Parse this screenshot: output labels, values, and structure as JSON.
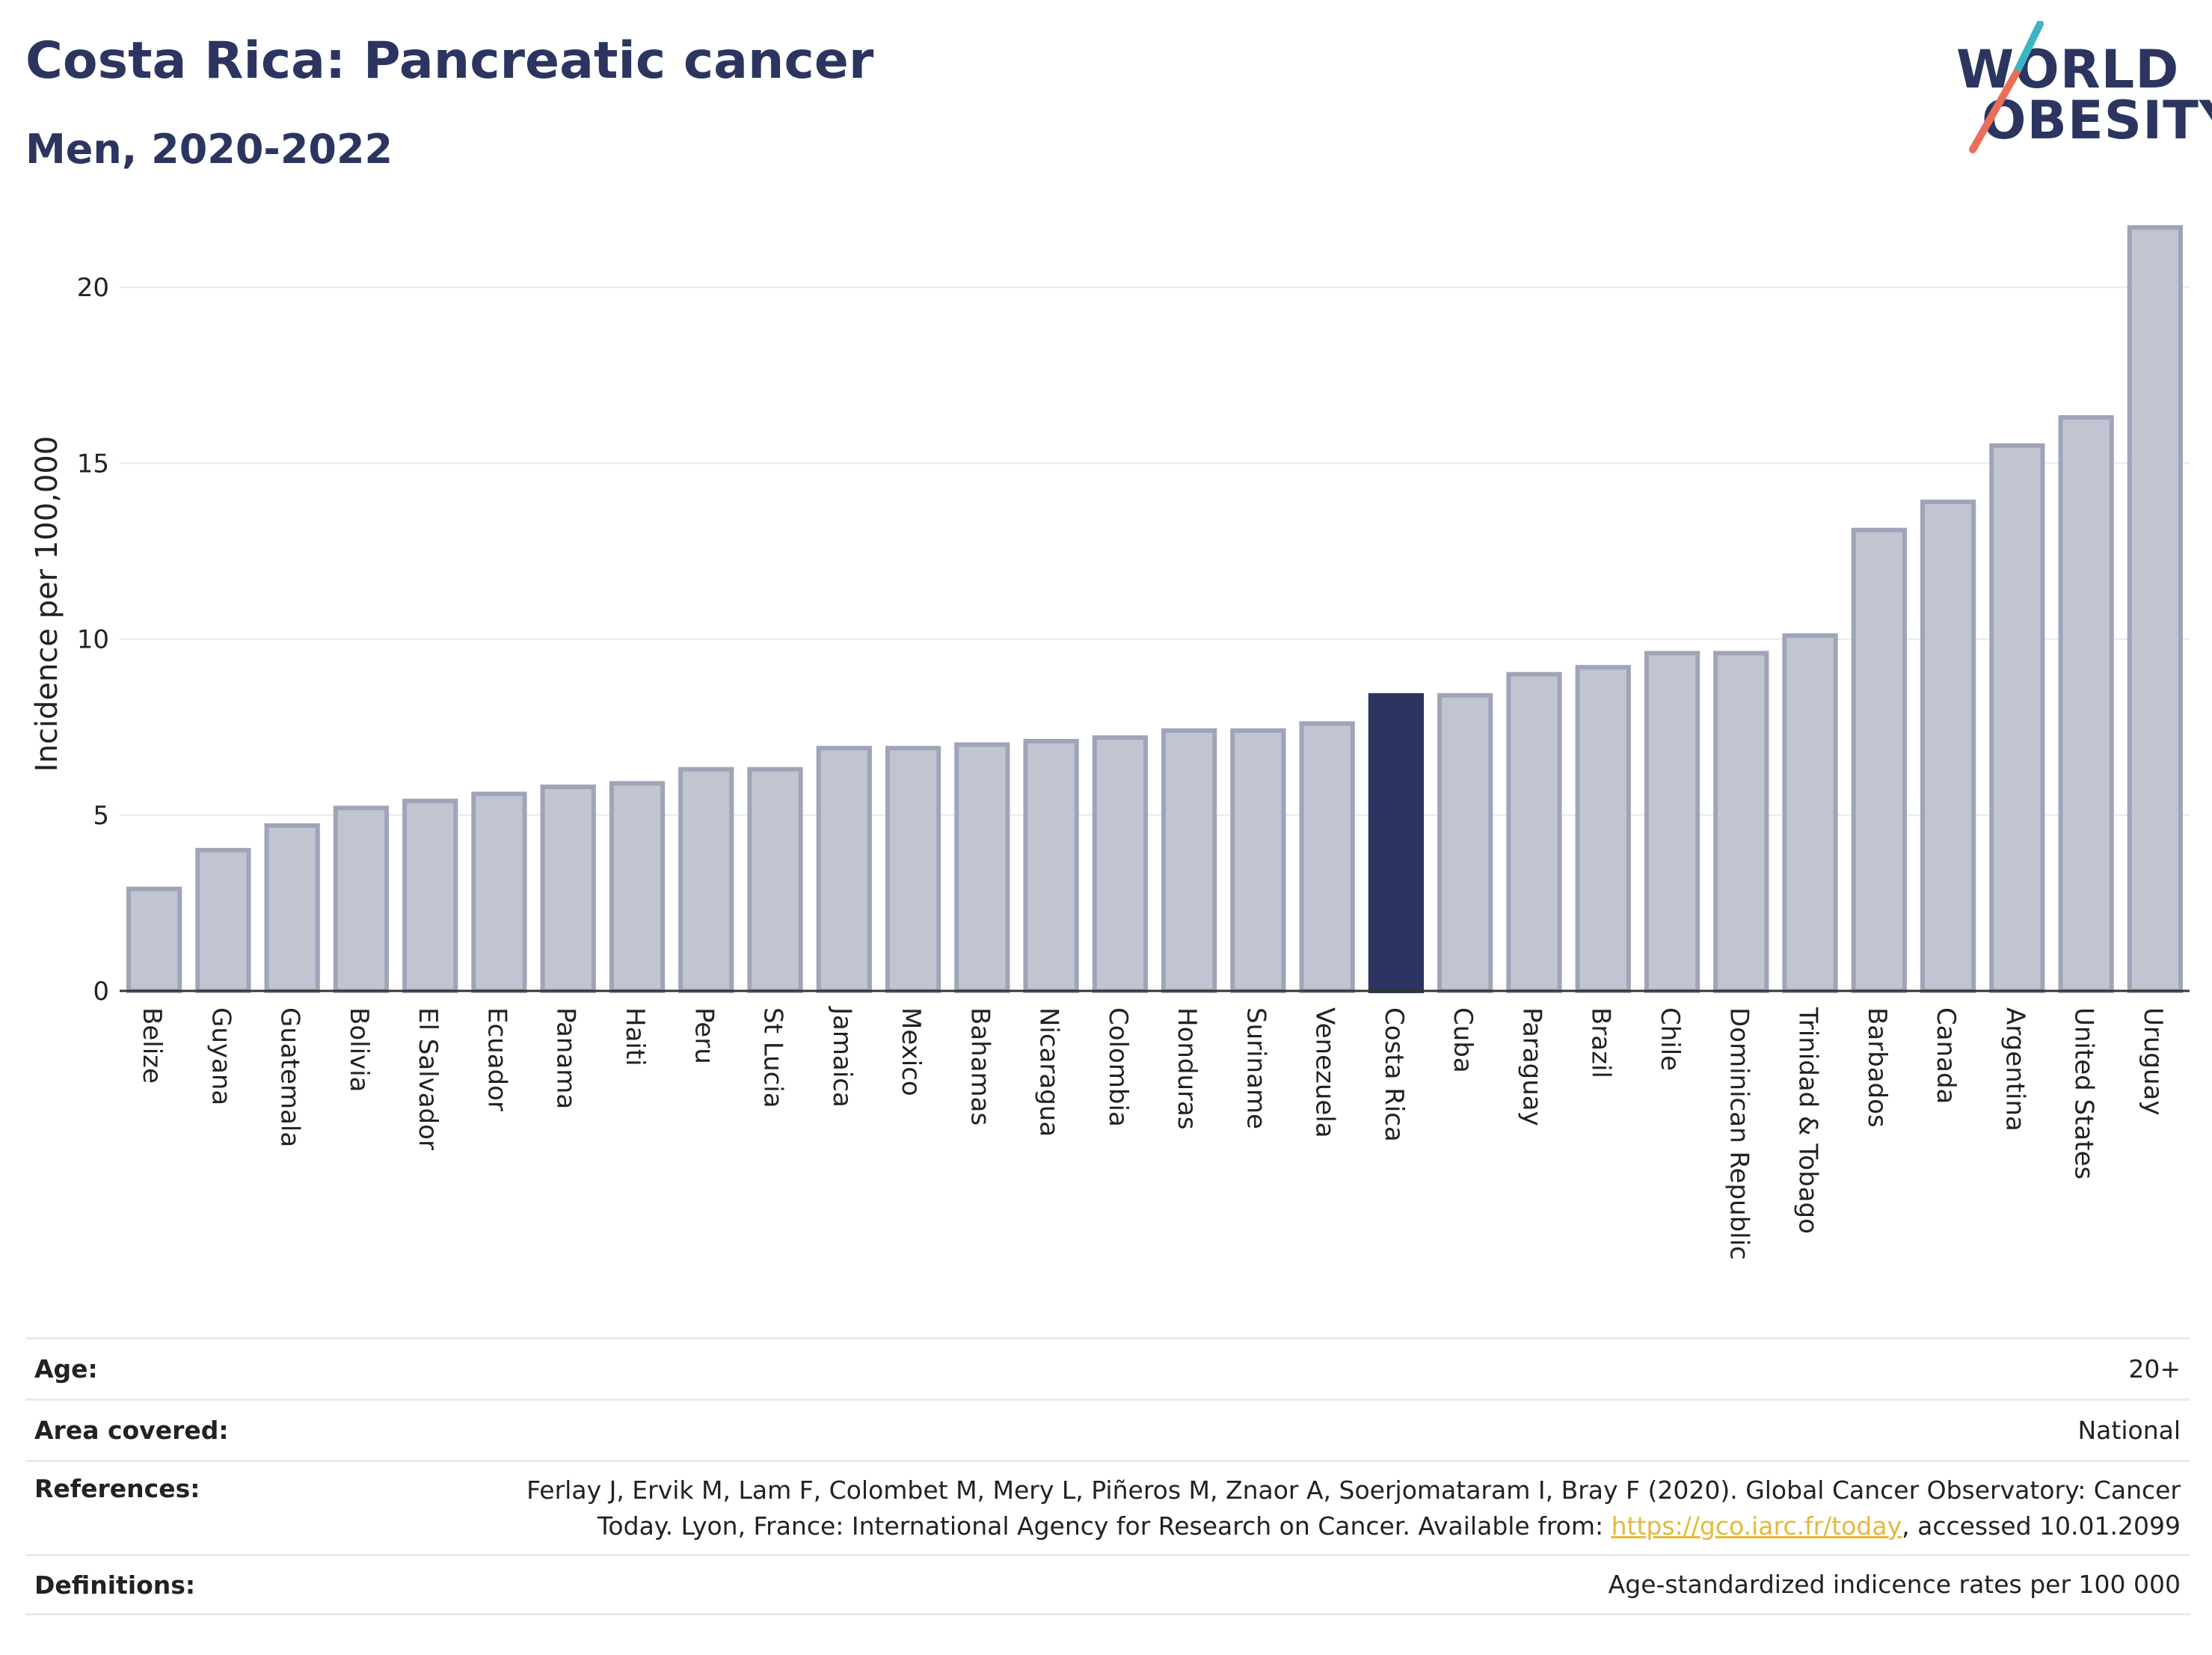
{
  "header": {
    "title": "Costa Rica: Pancreatic cancer",
    "subtitle": "Men, 2020-2022"
  },
  "logo": {
    "line1": "WORLD",
    "line2": "OBESITY",
    "colors": {
      "text": "#2b3560",
      "slash_top": "#3bb5c4",
      "slash_bottom": "#e8705a"
    }
  },
  "chart_data": {
    "type": "bar",
    "ylabel": "Incidence per 100,000",
    "xlabel": "",
    "ylim": [
      0,
      22
    ],
    "yticks": [
      0,
      5,
      10,
      15,
      20
    ],
    "grid": true,
    "highlight": "Costa Rica",
    "colors": {
      "bar": "#c1c4d1",
      "bar_stroke": "#9fa4b8",
      "highlight": "#2b3560"
    },
    "categories": [
      "Belize",
      "Guyana",
      "Guatemala",
      "Bolivia",
      "El Salvador",
      "Ecuador",
      "Panama",
      "Haiti",
      "Peru",
      "St Lucia",
      "Jamaica",
      "Mexico",
      "Bahamas",
      "Nicaragua",
      "Colombia",
      "Honduras",
      "Suriname",
      "Venezuela",
      "Costa Rica",
      "Cuba",
      "Paraguay",
      "Brazil",
      "Chile",
      "Dominican Republic",
      "Trinidad & Tobago",
      "Barbados",
      "Canada",
      "Argentina",
      "United States",
      "Uruguay"
    ],
    "values": [
      2.9,
      4.0,
      4.7,
      5.2,
      5.4,
      5.6,
      5.8,
      5.9,
      6.3,
      6.3,
      6.9,
      6.9,
      7.0,
      7.1,
      7.2,
      7.4,
      7.4,
      7.6,
      8.4,
      8.4,
      9.0,
      9.2,
      9.6,
      9.6,
      10.1,
      13.1,
      13.9,
      15.5,
      16.3,
      21.7
    ]
  },
  "info": {
    "age": {
      "label": "Age:",
      "value": "20+"
    },
    "area": {
      "label": "Area covered:",
      "value": "National"
    },
    "references": {
      "label": "References:",
      "line1": "Ferlay J, Ervik M, Lam F, Colombet M, Mery L, Piñeros M, Znaor A, Soerjomataram I, Bray F (2020). Global Cancer Observatory: Cancer",
      "line2_pre": "Today. Lyon, France: International Agency for Research on Cancer. Available from: ",
      "link": "https://gco.iarc.fr/today",
      "line2_post": ", accessed 10.01.2099"
    },
    "definitions": {
      "label": "Definitions:",
      "value": "Age-standardized indicence rates per 100 000"
    }
  }
}
